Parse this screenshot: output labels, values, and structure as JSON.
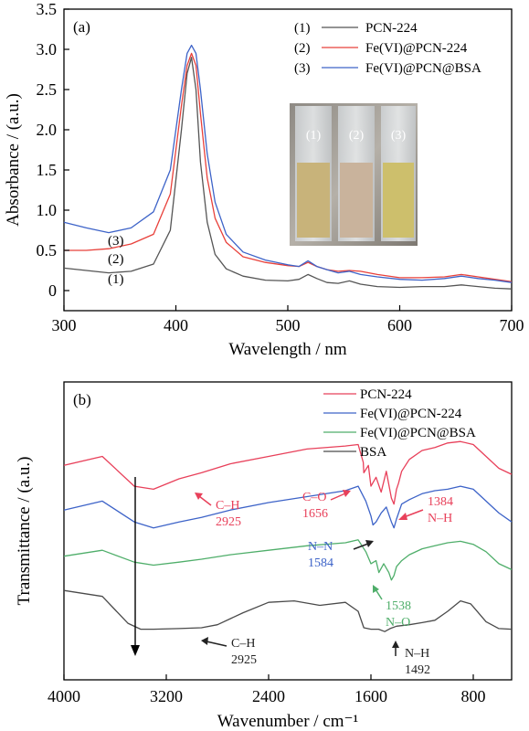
{
  "chart_data": [
    {
      "type": "line",
      "panel_label": "(a)",
      "xlabel": "Wavelength / nm",
      "ylabel": "Absorbance / (a.u.)",
      "xlim": [
        300,
        700
      ],
      "ylim": [
        -0.25,
        3.5
      ],
      "xticks": [
        300,
        400,
        500,
        600,
        700
      ],
      "yticks": [
        0,
        0.5,
        1.0,
        1.5,
        2.0,
        2.5,
        3.0,
        3.5
      ],
      "ytick_labels": [
        "0",
        "0.5",
        "1.0",
        "1.5",
        "2.0",
        "2.5",
        "3.0",
        "3.5"
      ],
      "grid": false,
      "legend_position": "top-right",
      "series": [
        {
          "name": "PCN-224",
          "number": "(1)",
          "color": "#555555",
          "x": [
            300,
            320,
            340,
            360,
            380,
            395,
            405,
            410,
            414,
            418,
            422,
            428,
            435,
            445,
            460,
            480,
            500,
            510,
            518,
            526,
            535,
            545,
            555,
            565,
            580,
            600,
            620,
            640,
            655,
            670,
            685,
            700
          ],
          "y": [
            0.28,
            0.25,
            0.22,
            0.24,
            0.33,
            0.75,
            2.0,
            2.7,
            2.9,
            2.5,
            1.6,
            0.85,
            0.45,
            0.27,
            0.18,
            0.13,
            0.12,
            0.14,
            0.2,
            0.15,
            0.1,
            0.09,
            0.12,
            0.08,
            0.05,
            0.04,
            0.05,
            0.05,
            0.07,
            0.05,
            0.03,
            0.02
          ]
        },
        {
          "name": "Fe(VI)@PCN-224",
          "number": "(2)",
          "color": "#e8403a",
          "x": [
            300,
            320,
            340,
            360,
            380,
            395,
            405,
            410,
            414,
            418,
            422,
            428,
            435,
            445,
            460,
            480,
            500,
            510,
            518,
            526,
            535,
            545,
            555,
            565,
            580,
            600,
            620,
            640,
            655,
            670,
            685,
            700
          ],
          "y": [
            0.5,
            0.5,
            0.52,
            0.58,
            0.7,
            1.2,
            2.3,
            2.8,
            2.95,
            2.8,
            2.2,
            1.4,
            0.9,
            0.6,
            0.42,
            0.35,
            0.31,
            0.3,
            0.35,
            0.3,
            0.26,
            0.24,
            0.25,
            0.24,
            0.2,
            0.16,
            0.16,
            0.17,
            0.2,
            0.17,
            0.14,
            0.11
          ]
        },
        {
          "name": "Fe(VI)@PCN@BSA",
          "number": "(3)",
          "color": "#3d63c8",
          "x": [
            300,
            320,
            340,
            360,
            380,
            395,
            405,
            410,
            414,
            418,
            422,
            428,
            435,
            445,
            460,
            480,
            500,
            510,
            518,
            526,
            535,
            545,
            555,
            565,
            580,
            600,
            620,
            640,
            655,
            670,
            685,
            700
          ],
          "y": [
            0.85,
            0.78,
            0.72,
            0.78,
            0.98,
            1.5,
            2.5,
            2.95,
            3.05,
            2.95,
            2.5,
            1.7,
            1.1,
            0.7,
            0.48,
            0.38,
            0.32,
            0.3,
            0.37,
            0.3,
            0.26,
            0.22,
            0.24,
            0.2,
            0.17,
            0.14,
            0.13,
            0.15,
            0.18,
            0.15,
            0.13,
            0.1
          ]
        }
      ],
      "curve_markers": [
        "(3)",
        "(2)",
        "(1)"
      ],
      "inset_vial_labels": [
        "(1)",
        "(2)",
        "(3)"
      ],
      "inset_vial_colors": [
        "#c8b37a",
        "#c9b39c",
        "#cdbf6c"
      ]
    },
    {
      "type": "line",
      "panel_label": "(b)",
      "xlabel": "Wavenumber / cm⁻¹",
      "ylabel": "Transmittance / (a.u.)",
      "xlim": [
        4000,
        500
      ],
      "xticks": [
        4000,
        3200,
        2400,
        1600,
        800
      ],
      "y_ticks_shown": false,
      "grid": false,
      "legend_position": "top-right",
      "series": [
        {
          "name": "PCN-224",
          "color": "#e8405a",
          "x": [
            4000,
            3700,
            3450,
            3300,
            3100,
            2925,
            2700,
            2400,
            2100,
            1800,
            1700,
            1660,
            1656,
            1620,
            1600,
            1560,
            1520,
            1480,
            1440,
            1420,
            1400,
            1384,
            1360,
            1300,
            1200,
            1100,
            1000,
            900,
            800,
            700,
            600,
            500
          ],
          "y": [
            7.2,
            7.5,
            6.5,
            6.4,
            6.75,
            6.95,
            7.25,
            7.5,
            7.75,
            7.85,
            7.9,
            7.3,
            6.95,
            7.2,
            6.5,
            6.8,
            6.3,
            7.0,
            6.1,
            5.9,
            6.4,
            6.6,
            7.0,
            7.4,
            7.7,
            7.8,
            7.95,
            8.0,
            7.9,
            7.5,
            7.1,
            6.9
          ]
        },
        {
          "name": "Fe(VI)@PCN-224",
          "color": "#3d63c8",
          "x": [
            4000,
            3700,
            3450,
            3300,
            3100,
            2925,
            2700,
            2400,
            2100,
            1800,
            1700,
            1640,
            1600,
            1584,
            1560,
            1520,
            1480,
            1440,
            1420,
            1400,
            1360,
            1300,
            1200,
            1100,
            1000,
            900,
            800,
            700,
            600,
            500
          ],
          "y": [
            5.7,
            6.0,
            5.3,
            5.1,
            5.3,
            5.45,
            5.7,
            5.95,
            6.15,
            6.35,
            6.5,
            6.0,
            5.5,
            5.2,
            5.3,
            5.6,
            5.8,
            5.3,
            5.1,
            5.4,
            5.9,
            6.05,
            6.25,
            6.35,
            6.4,
            6.5,
            6.4,
            6.0,
            5.6,
            5.3
          ]
        },
        {
          "name": "Fe(VI)@PCN@BSA",
          "color": "#4fae6a",
          "x": [
            4000,
            3700,
            3450,
            3300,
            3100,
            2925,
            2700,
            2400,
            2100,
            1800,
            1700,
            1640,
            1600,
            1560,
            1538,
            1500,
            1460,
            1440,
            1420,
            1400,
            1360,
            1300,
            1200,
            1100,
            1000,
            900,
            800,
            700,
            600,
            500
          ],
          "y": [
            4.15,
            4.35,
            3.95,
            3.85,
            3.95,
            4.05,
            4.2,
            4.35,
            4.5,
            4.6,
            4.7,
            4.3,
            3.9,
            4.0,
            3.6,
            3.9,
            3.6,
            3.35,
            3.5,
            3.8,
            4.0,
            4.2,
            4.4,
            4.5,
            4.6,
            4.65,
            4.55,
            4.3,
            3.9,
            3.7
          ]
        },
        {
          "name": "BSA",
          "color": "#4a4a4a",
          "x": [
            4000,
            3700,
            3500,
            3400,
            3300,
            3100,
            2925,
            2800,
            2600,
            2400,
            2200,
            2000,
            1800,
            1700,
            1656,
            1600,
            1540,
            1492,
            1450,
            1400,
            1300,
            1200,
            1100,
            1000,
            900,
            820,
            800,
            700,
            600,
            500
          ],
          "y": [
            3.0,
            2.8,
            1.9,
            1.7,
            1.7,
            1.72,
            1.75,
            1.85,
            2.25,
            2.6,
            2.65,
            2.5,
            2.6,
            2.3,
            1.75,
            1.7,
            1.7,
            1.62,
            1.72,
            1.8,
            1.85,
            1.92,
            2.0,
            2.3,
            2.65,
            2.55,
            2.45,
            1.95,
            1.72,
            1.7
          ]
        }
      ],
      "annotations": [
        {
          "label": "C–H",
          "value": "2925",
          "color": "#e8405a",
          "x": 2925
        },
        {
          "label": "C–O",
          "value": "1656",
          "color": "#e8405a",
          "x": 1656
        },
        {
          "label": "1384",
          "value": "N–H",
          "color": "#e8405a",
          "x": 1384
        },
        {
          "label": "N–N",
          "value": "1584",
          "color": "#3d63c8",
          "x": 1584
        },
        {
          "label": "1538",
          "value": "N–O",
          "color": "#4fae6a",
          "x": 1538
        },
        {
          "label": "C–H",
          "value": "2925",
          "color": "#222222",
          "x": 2925
        },
        {
          "label": "N–H",
          "value": "1492",
          "color": "#222222",
          "x": 1492
        }
      ]
    }
  ]
}
